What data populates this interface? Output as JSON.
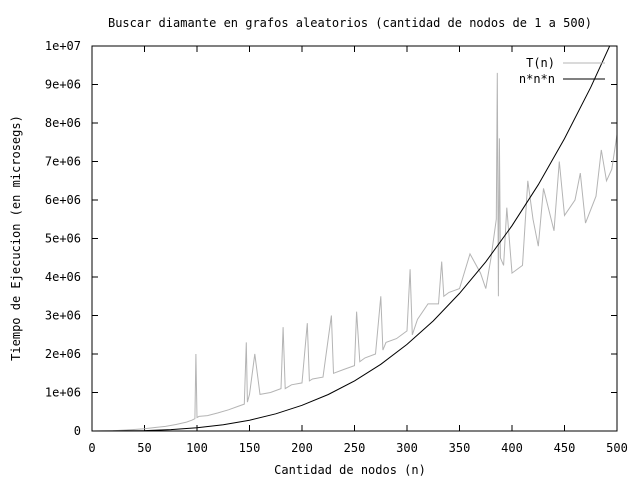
{
  "chart_data": {
    "type": "line",
    "title": "Buscar diamante en grafos aleatorios (cantidad de nodos de 1 a 500)",
    "xlabel": "Cantidad de nodos (n)",
    "ylabel": "Tiempo de Ejecucion (en microsegs)",
    "xlim": [
      0,
      500
    ],
    "ylim": [
      0,
      10000000
    ],
    "xticks": [
      0,
      50,
      100,
      150,
      200,
      250,
      300,
      350,
      400,
      450,
      500
    ],
    "yticks": [
      0,
      1000000,
      2000000,
      3000000,
      4000000,
      5000000,
      6000000,
      7000000,
      8000000,
      9000000,
      10000000
    ],
    "xtick_labels": [
      "0",
      "50",
      "100",
      "150",
      "200",
      "250",
      "300",
      "350",
      "400",
      "450",
      "500"
    ],
    "ytick_labels": [
      "0",
      "1e+06",
      "2e+06",
      "3e+06",
      "4e+06",
      "5e+06",
      "6e+06",
      "7e+06",
      "8e+06",
      "9e+06",
      "1e+07"
    ],
    "grid": false,
    "legend_position": "top-right",
    "series": [
      {
        "name": "T(n)",
        "color": "#b4b4b4",
        "x": [
          0,
          20,
          40,
          50,
          60,
          70,
          80,
          90,
          95,
          98,
          99,
          100,
          102,
          110,
          120,
          130,
          140,
          145,
          147,
          148,
          150,
          155,
          160,
          170,
          180,
          182,
          184,
          190,
          200,
          205,
          207,
          210,
          220,
          228,
          230,
          240,
          250,
          252,
          255,
          260,
          270,
          275,
          277,
          280,
          290,
          300,
          303,
          305,
          310,
          320,
          330,
          333,
          335,
          340,
          350,
          360,
          370,
          375,
          380,
          385,
          386,
          387,
          388,
          389,
          392,
          395,
          400,
          410,
          415,
          420,
          425,
          430,
          440,
          445,
          450,
          460,
          465,
          470,
          480,
          485,
          490,
          495,
          500
        ],
        "y": [
          0,
          5000,
          40000,
          60000,
          90000,
          120000,
          170000,
          230000,
          280000,
          320000,
          2000000,
          350000,
          380000,
          400000,
          470000,
          550000,
          650000,
          700000,
          2300000,
          750000,
          950000,
          2000000,
          950000,
          1000000,
          1100000,
          2700000,
          1100000,
          1200000,
          1250000,
          2800000,
          1300000,
          1350000,
          1400000,
          3000000,
          1500000,
          1600000,
          1700000,
          3100000,
          1800000,
          1900000,
          2000000,
          3500000,
          2100000,
          2300000,
          2400000,
          2600000,
          4200000,
          2500000,
          2900000,
          3300000,
          3300000,
          4400000,
          3500000,
          3600000,
          3700000,
          4600000,
          4100000,
          3700000,
          4500000,
          5500000,
          9300000,
          3500000,
          7600000,
          4500000,
          4300000,
          5800000,
          4100000,
          4300000,
          6500000,
          5500000,
          4800000,
          6300000,
          5200000,
          7000000,
          5600000,
          6000000,
          6700000,
          5400000,
          6100000,
          7300000,
          6500000,
          6800000,
          7700000
        ]
      },
      {
        "name": "n*n*n",
        "color": "#000000",
        "x": [
          0,
          25,
          50,
          75,
          100,
          125,
          150,
          175,
          200,
          225,
          250,
          275,
          300,
          325,
          350,
          375,
          400,
          425,
          450,
          475,
          500
        ],
        "y": [
          0,
          1302,
          10417,
          35156,
          83333,
          162760,
          281250,
          446615,
          666667,
          949219,
          1302083,
          1733073,
          2250000,
          2860677,
          3572917,
          4394531,
          5333333,
          6397135,
          7593750,
          8930990,
          10416667
        ]
      }
    ]
  }
}
